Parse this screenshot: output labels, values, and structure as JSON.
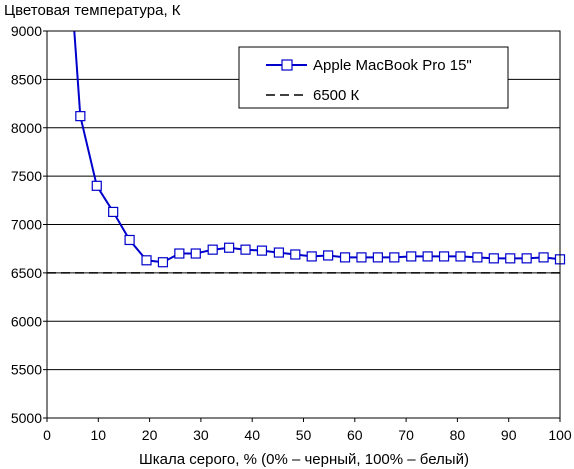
{
  "chart_data": {
    "type": "line",
    "title": "",
    "ylabel": "Цветовая температура, К",
    "xlabel": "Шкала серого, % (0% – черный, 100% – белый)",
    "xlim": [
      0,
      100
    ],
    "ylim": [
      5000,
      9000
    ],
    "xticks": [
      0,
      10,
      20,
      30,
      40,
      50,
      60,
      70,
      80,
      90,
      100
    ],
    "yticks": [
      5000,
      5500,
      6000,
      6500,
      7000,
      7500,
      8000,
      8500,
      9000
    ],
    "grid": "horizontal",
    "legend_position": "top-right",
    "series": [
      {
        "name": "Apple MacBook Pro 15\"",
        "color": "#0000cc",
        "marker": "open-square",
        "x": [
          3.2,
          6.5,
          9.7,
          12.9,
          16.1,
          19.4,
          22.6,
          25.8,
          29.0,
          32.3,
          35.5,
          38.7,
          41.9,
          45.2,
          48.4,
          51.6,
          54.8,
          58.1,
          61.3,
          64.5,
          67.7,
          71.0,
          74.2,
          77.4,
          80.6,
          83.9,
          87.1,
          90.3,
          93.5,
          96.8,
          100
        ],
        "y": [
          10600,
          8120,
          7400,
          7130,
          6840,
          6630,
          6610,
          6700,
          6700,
          6740,
          6760,
          6740,
          6730,
          6710,
          6690,
          6670,
          6680,
          6660,
          6660,
          6660,
          6660,
          6670,
          6670,
          6670,
          6670,
          6660,
          6650,
          6650,
          6650,
          6660,
          6640
        ]
      },
      {
        "name": "6500 К",
        "color": "#000000",
        "style": "dashed",
        "x": [
          0,
          100
        ],
        "y": [
          6500,
          6500
        ]
      }
    ]
  }
}
